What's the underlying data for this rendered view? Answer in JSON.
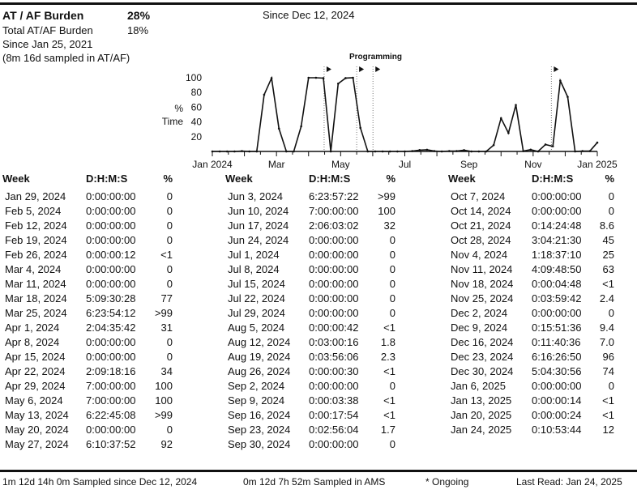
{
  "header": {
    "title": "AT / AF Burden",
    "title_value": "28%",
    "since_label": "Since Dec 12, 2024",
    "total_label": "Total AT/AF Burden",
    "total_value": "18%",
    "total_since": "Since Jan 25, 2021",
    "sampled_note": "(8m 16d sampled in AT/AF)"
  },
  "table": {
    "headers": {
      "week": "Week",
      "dhms": "D:H:M:S",
      "pct": "%"
    },
    "columns": [
      [
        {
          "week": "Jan 29, 2024",
          "dhms": "0:00:00:00",
          "pct": "0"
        },
        {
          "week": "Feb 5, 2024",
          "dhms": "0:00:00:00",
          "pct": "0"
        },
        {
          "week": "Feb 12, 2024",
          "dhms": "0:00:00:00",
          "pct": "0"
        },
        {
          "week": "Feb 19, 2024",
          "dhms": "0:00:00:00",
          "pct": "0"
        },
        {
          "week": "Feb 26, 2024",
          "dhms": "0:00:00:12",
          "pct": "<1"
        },
        {
          "week": "Mar 4, 2024",
          "dhms": "0:00:00:00",
          "pct": "0"
        },
        {
          "week": "Mar 11, 2024",
          "dhms": "0:00:00:00",
          "pct": "0"
        },
        {
          "week": "Mar 18, 2024",
          "dhms": "5:09:30:28",
          "pct": "77"
        },
        {
          "week": "Mar 25, 2024",
          "dhms": "6:23:54:12",
          "pct": ">99"
        },
        {
          "week": "Apr 1, 2024",
          "dhms": "2:04:35:42",
          "pct": "31"
        },
        {
          "week": "Apr 8, 2024",
          "dhms": "0:00:00:00",
          "pct": "0"
        },
        {
          "week": "Apr 15, 2024",
          "dhms": "0:00:00:00",
          "pct": "0"
        },
        {
          "week": "Apr 22, 2024",
          "dhms": "2:09:18:16",
          "pct": "34"
        },
        {
          "week": "Apr 29, 2024",
          "dhms": "7:00:00:00",
          "pct": "100"
        },
        {
          "week": "May 6, 2024",
          "dhms": "7:00:00:00",
          "pct": "100"
        },
        {
          "week": "May 13, 2024",
          "dhms": "6:22:45:08",
          "pct": ">99"
        },
        {
          "week": "May 20, 2024",
          "dhms": "0:00:00:00",
          "pct": "0"
        },
        {
          "week": "May 27, 2024",
          "dhms": "6:10:37:52",
          "pct": "92"
        }
      ],
      [
        {
          "week": "Jun 3, 2024",
          "dhms": "6:23:57:22",
          "pct": ">99"
        },
        {
          "week": "Jun 10, 2024",
          "dhms": "7:00:00:00",
          "pct": "100"
        },
        {
          "week": "Jun 17, 2024",
          "dhms": "2:06:03:02",
          "pct": "32"
        },
        {
          "week": "Jun 24, 2024",
          "dhms": "0:00:00:00",
          "pct": "0"
        },
        {
          "week": "Jul 1, 2024",
          "dhms": "0:00:00:00",
          "pct": "0"
        },
        {
          "week": "Jul 8, 2024",
          "dhms": "0:00:00:00",
          "pct": "0"
        },
        {
          "week": "Jul 15, 2024",
          "dhms": "0:00:00:00",
          "pct": "0"
        },
        {
          "week": "Jul 22, 2024",
          "dhms": "0:00:00:00",
          "pct": "0"
        },
        {
          "week": "Jul 29, 2024",
          "dhms": "0:00:00:00",
          "pct": "0"
        },
        {
          "week": "Aug 5, 2024",
          "dhms": "0:00:00:42",
          "pct": "<1"
        },
        {
          "week": "Aug 12, 2024",
          "dhms": "0:03:00:16",
          "pct": "1.8"
        },
        {
          "week": "Aug 19, 2024",
          "dhms": "0:03:56:06",
          "pct": "2.3"
        },
        {
          "week": "Aug 26, 2024",
          "dhms": "0:00:00:30",
          "pct": "<1"
        },
        {
          "week": "Sep 2, 2024",
          "dhms": "0:00:00:00",
          "pct": "0"
        },
        {
          "week": "Sep 9, 2024",
          "dhms": "0:00:03:38",
          "pct": "<1"
        },
        {
          "week": "Sep 16, 2024",
          "dhms": "0:00:17:54",
          "pct": "<1"
        },
        {
          "week": "Sep 23, 2024",
          "dhms": "0:02:56:04",
          "pct": "1.7"
        },
        {
          "week": "Sep 30, 2024",
          "dhms": "0:00:00:00",
          "pct": "0"
        }
      ],
      [
        {
          "week": "Oct 7, 2024",
          "dhms": "0:00:00:00",
          "pct": "0"
        },
        {
          "week": "Oct 14, 2024",
          "dhms": "0:00:00:00",
          "pct": "0"
        },
        {
          "week": "Oct 21, 2024",
          "dhms": "0:14:24:48",
          "pct": "8.6"
        },
        {
          "week": "Oct 28, 2024",
          "dhms": "3:04:21:30",
          "pct": "45"
        },
        {
          "week": "Nov 4, 2024",
          "dhms": "1:18:37:10",
          "pct": "25"
        },
        {
          "week": "Nov 11, 2024",
          "dhms": "4:09:48:50",
          "pct": "63"
        },
        {
          "week": "Nov 18, 2024",
          "dhms": "0:00:04:48",
          "pct": "<1"
        },
        {
          "week": "Nov 25, 2024",
          "dhms": "0:03:59:42",
          "pct": "2.4"
        },
        {
          "week": "Dec 2, 2024",
          "dhms": "0:00:00:00",
          "pct": "0"
        },
        {
          "week": "Dec 9, 2024",
          "dhms": "0:15:51:36",
          "pct": "9.4"
        },
        {
          "week": "Dec 16, 2024",
          "dhms": "0:11:40:36",
          "pct": "7.0"
        },
        {
          "week": "Dec 23, 2024",
          "dhms": "6:16:26:50",
          "pct": "96"
        },
        {
          "week": "Dec 30, 2024",
          "dhms": "5:04:30:56",
          "pct": "74"
        },
        {
          "week": "Jan 6, 2025",
          "dhms": "0:00:00:00",
          "pct": "0"
        },
        {
          "week": "Jan 13, 2025",
          "dhms": "0:00:00:14",
          "pct": "<1"
        },
        {
          "week": "Jan 20, 2025",
          "dhms": "0:00:00:24",
          "pct": "<1"
        },
        {
          "week": "Jan 24, 2025",
          "dhms": "0:10:53:44",
          "pct": "12"
        }
      ]
    ]
  },
  "chart_data": {
    "type": "line",
    "title": "Programming",
    "ylabel": [
      "%",
      "Time"
    ],
    "ylim": [
      0,
      100
    ],
    "yticks": [
      20,
      40,
      60,
      80,
      100
    ],
    "xtick_labels": [
      "Jan 2024",
      "Mar",
      "May",
      "Jul",
      "Sep",
      "Nov",
      "Jan 2025"
    ],
    "x_unit": "week index (0 = first plotted week, 52 = last)",
    "values": [
      0,
      0,
      0,
      0,
      0.5,
      0,
      0,
      77,
      99.5,
      31,
      0,
      0,
      34,
      100,
      100,
      99.5,
      0,
      92,
      99.5,
      100,
      32,
      0,
      0,
      0,
      0,
      0,
      0,
      0.5,
      1.8,
      2.3,
      0.5,
      0,
      0.5,
      0.5,
      1.7,
      0,
      0,
      0,
      8.6,
      45,
      25,
      63,
      0.5,
      2.4,
      0,
      9.4,
      7.0,
      96,
      74,
      0,
      0.5,
      0.5,
      12
    ],
    "programming_events_week": [
      15.1,
      19.5,
      21.7,
      45.8
    ],
    "grid": false
  },
  "footer": {
    "sampled_since": "1m 12d 14h 0m Sampled since Dec 12, 2024",
    "sampled_ams": "0m 12d 7h 52m Sampled in AMS",
    "ongoing": "* Ongoing",
    "last_read": "Last Read: Jan 24, 2025"
  }
}
